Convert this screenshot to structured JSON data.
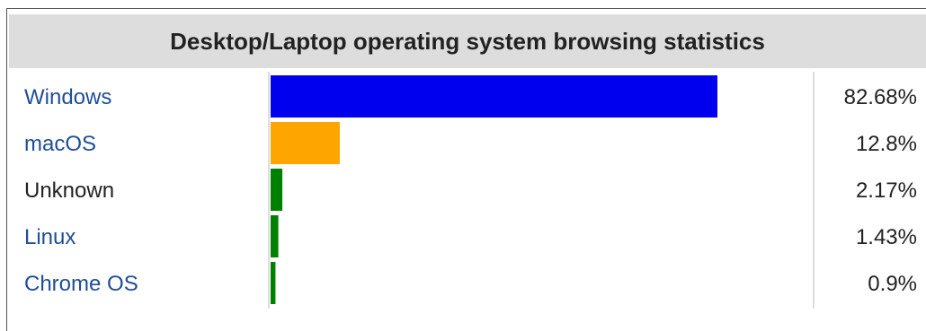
{
  "chart_data": {
    "type": "bar",
    "orientation": "horizontal",
    "title": "Desktop/Laptop operating system browsing statistics",
    "categories": [
      "Windows",
      "macOS",
      "Unknown",
      "Linux",
      "Chrome OS"
    ],
    "values": [
      82.68,
      12.8,
      2.17,
      1.43,
      0.9
    ],
    "value_labels": [
      "82.68%",
      "12.8%",
      "2.17%",
      "1.43%",
      "0.9%"
    ],
    "colors": [
      "#0000ee",
      "#ffa500",
      "#008000",
      "#008000",
      "#008000"
    ],
    "label_colors": [
      "#1f4e96",
      "#1f4e96",
      "#222222",
      "#1f4e96",
      "#1f4e96"
    ],
    "linked": [
      true,
      true,
      false,
      true,
      true
    ],
    "xlim": [
      0,
      100
    ],
    "xlabel": "",
    "ylabel": "",
    "grid": false
  }
}
